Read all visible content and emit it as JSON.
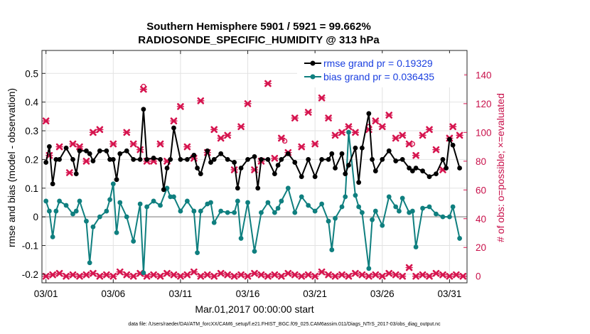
{
  "chart_data": {
    "type": "line",
    "title_line1": "Southern Hemisphere 5901 / 5921 = 99.662%",
    "title_line2": "RADIOSONDE_SPECIFIC_HUMIDITY @ 313 hPa",
    "xlabel": "Mar.01,2017 00:00:00 start",
    "ylabel_left": "rmse and bias (model - observation)",
    "ylabel_right": "# of obs: o=possible; ×=evaluated",
    "footnote": "data file: /Users/raeder/DAI/ATM_forcXX/CAM6_setup/f.e21.FHIST_BGC.f09_025.CAM6assim.011/Diags_NTrS_2017-03/obs_diag_output.nc",
    "x_range": [
      0.7,
      32.3
    ],
    "x_ticks": [
      1,
      6,
      11,
      16,
      21,
      26,
      31
    ],
    "x_tick_labels": [
      "03/01",
      "03/06",
      "03/11",
      "03/16",
      "03/21",
      "03/26",
      "03/31"
    ],
    "y_left_range": [
      -0.23,
      0.58
    ],
    "y_left_ticks": [
      -0.2,
      -0.1,
      0,
      0.1,
      0.2,
      0.3,
      0.4,
      0.5
    ],
    "y_left_tick_labels": [
      "-0.2",
      "-0.1",
      "0",
      "0.1",
      "0.2",
      "0.3",
      "0.4",
      "0.5"
    ],
    "y_right_range": [
      -4.6,
      157
    ],
    "y_right_ticks": [
      0,
      20,
      40,
      60,
      80,
      100,
      120,
      140
    ],
    "y_right_tick_labels": [
      "0",
      "20",
      "40",
      "60",
      "80",
      "100",
      "120",
      "140"
    ],
    "legend": [
      {
        "label": "rmse grand pr = 0.19329",
        "color": "#000000"
      },
      {
        "label": "bias grand pr = 0.036435",
        "color": "#0f7f7f"
      }
    ],
    "colors": {
      "rmse": "#000000",
      "bias": "#0f7f7f",
      "obs": "#d6154f",
      "zero_line": "#b8b8b8"
    },
    "series_rmse": [
      [
        1,
        0.19
      ],
      [
        1.25,
        0.245
      ],
      [
        1.5,
        0.115
      ],
      [
        1.75,
        0.2
      ],
      [
        2,
        0.2
      ],
      [
        2.5,
        0.24
      ],
      [
        3,
        0.2
      ],
      [
        3.25,
        0.15
      ],
      [
        3.5,
        0.23
      ],
      [
        4,
        0.23
      ],
      [
        4.25,
        0.22
      ],
      [
        4.5,
        0.195
      ],
      [
        5,
        0.23
      ],
      [
        5.5,
        0.23
      ],
      [
        5.75,
        0.2
      ],
      [
        6,
        0.2
      ],
      [
        6.25,
        0.13
      ],
      [
        6.5,
        0.22
      ],
      [
        7,
        0.23
      ],
      [
        7.5,
        0.2
      ],
      [
        8,
        0.2
      ],
      [
        8.25,
        0.375
      ],
      [
        8.5,
        0.2
      ],
      [
        9,
        0.205
      ],
      [
        9.5,
        0.2
      ],
      [
        9.75,
        0.095
      ],
      [
        10,
        0.17
      ],
      [
        10.25,
        0.2
      ],
      [
        10.5,
        0.31
      ],
      [
        11,
        0.2
      ],
      [
        11.5,
        0.2
      ],
      [
        12,
        0.215
      ],
      [
        12.25,
        0.17
      ],
      [
        12.5,
        0.15
      ],
      [
        13,
        0.23
      ],
      [
        13.25,
        0.19
      ],
      [
        13.5,
        0.2
      ],
      [
        14,
        0.22
      ],
      [
        14.5,
        0.2
      ],
      [
        15,
        0.19
      ],
      [
        15.25,
        0.1
      ],
      [
        15.5,
        0.17
      ],
      [
        16,
        0.2
      ],
      [
        16.5,
        0.21
      ],
      [
        16.75,
        0.1
      ],
      [
        17,
        0.2
      ],
      [
        17.5,
        0.2
      ],
      [
        18,
        0.15
      ],
      [
        18.25,
        0.18
      ],
      [
        18.5,
        0.2
      ],
      [
        19,
        0.22
      ],
      [
        19.5,
        0.19
      ],
      [
        20,
        0.14
      ],
      [
        20.5,
        0.2
      ],
      [
        21,
        0.14
      ],
      [
        21.5,
        0.2
      ],
      [
        22,
        0.2
      ],
      [
        22.25,
        0.22
      ],
      [
        22.5,
        0.17
      ],
      [
        23,
        0.22
      ],
      [
        23.25,
        0.15
      ],
      [
        23.5,
        0.18
      ],
      [
        24,
        0.24
      ],
      [
        24.25,
        0.12
      ],
      [
        24.5,
        0.24
      ],
      [
        25,
        0.36
      ],
      [
        25.25,
        0.2
      ],
      [
        25.5,
        0.16
      ],
      [
        26,
        0.2
      ],
      [
        26.5,
        0.23
      ],
      [
        27,
        0.195
      ],
      [
        27.5,
        0.2
      ],
      [
        28,
        0.17
      ],
      [
        28.25,
        0.16
      ],
      [
        28.5,
        0.17
      ],
      [
        29,
        0.16
      ],
      [
        29.5,
        0.14
      ],
      [
        30,
        0.15
      ],
      [
        30.5,
        0.2
      ],
      [
        30.75,
        0.17
      ],
      [
        31,
        0.27
      ],
      [
        31.25,
        0.25
      ],
      [
        31.75,
        0.17
      ]
    ],
    "series_bias": [
      [
        1,
        0.055
      ],
      [
        1.25,
        0.02
      ],
      [
        1.5,
        -0.07
      ],
      [
        1.75,
        0.02
      ],
      [
        2,
        0.055
      ],
      [
        2.5,
        0.04
      ],
      [
        3,
        0.01
      ],
      [
        3.25,
        0.02
      ],
      [
        3.5,
        0.055
      ],
      [
        4,
        -0.015
      ],
      [
        4.25,
        -0.16
      ],
      [
        4.5,
        -0.035
      ],
      [
        5,
        0.0
      ],
      [
        5.5,
        0.02
      ],
      [
        5.75,
        0.06
      ],
      [
        6,
        0.115
      ],
      [
        6.25,
        -0.055
      ],
      [
        6.5,
        0.05
      ],
      [
        7,
        0.0
      ],
      [
        7.5,
        -0.085
      ],
      [
        8,
        0.045
      ],
      [
        8.25,
        -0.195
      ],
      [
        8.5,
        0.035
      ],
      [
        9,
        0.055
      ],
      [
        9.5,
        0.04
      ],
      [
        10,
        0.1
      ],
      [
        10.25,
        0.07
      ],
      [
        10.5,
        0.07
      ],
      [
        11,
        0.02
      ],
      [
        11.5,
        0.055
      ],
      [
        12,
        0.02
      ],
      [
        12.25,
        -0.125
      ],
      [
        12.5,
        0.02
      ],
      [
        13,
        0.045
      ],
      [
        13.25,
        0.05
      ],
      [
        13.5,
        -0.02
      ],
      [
        14,
        0.02
      ],
      [
        14.5,
        0.015
      ],
      [
        15,
        0.015
      ],
      [
        15.25,
        0.055
      ],
      [
        15.5,
        -0.075
      ],
      [
        16,
        0.05
      ],
      [
        16.5,
        -0.12
      ],
      [
        17,
        0.015
      ],
      [
        17.5,
        0.05
      ],
      [
        18,
        0.015
      ],
      [
        18.25,
        0.03
      ],
      [
        18.5,
        0.055
      ],
      [
        19,
        0.1
      ],
      [
        19.5,
        0.015
      ],
      [
        20,
        0.07
      ],
      [
        20.5,
        0.04
      ],
      [
        21,
        0.02
      ],
      [
        21.5,
        0.045
      ],
      [
        22,
        -0.015
      ],
      [
        22.25,
        -0.115
      ],
      [
        22.5,
        -0.005
      ],
      [
        23,
        0.035
      ],
      [
        23.25,
        0.07
      ],
      [
        23.5,
        0.295
      ],
      [
        24,
        0.075
      ],
      [
        24.25,
        0.035
      ],
      [
        24.5,
        0.015
      ],
      [
        25,
        -0.18
      ],
      [
        25.25,
        -0.01
      ],
      [
        25.5,
        0.02
      ],
      [
        26,
        -0.03
      ],
      [
        26.5,
        0.07
      ],
      [
        27,
        0.035
      ],
      [
        27.25,
        0.02
      ],
      [
        27.5,
        0.065
      ],
      [
        28,
        0.015
      ],
      [
        28.25,
        0.02
      ],
      [
        28.5,
        -0.105
      ],
      [
        29,
        0.03
      ],
      [
        29.5,
        0.035
      ],
      [
        30,
        0.01
      ],
      [
        30.5,
        0.0
      ],
      [
        31,
        0.0
      ],
      [
        31.25,
        0.035
      ],
      [
        31.75,
        -0.075
      ]
    ],
    "series_obs_possible_outliers": [
      [
        8.25,
        132
      ],
      [
        18.75,
        94
      ],
      [
        25,
        104
      ],
      [
        28.25,
        92
      ]
    ],
    "series_obs_evaluated_high": [
      [
        1,
        108
      ],
      [
        1.25,
        84
      ],
      [
        2,
        90
      ],
      [
        2.75,
        72
      ],
      [
        3,
        92
      ],
      [
        3.5,
        90
      ],
      [
        4,
        80
      ],
      [
        4.5,
        100
      ],
      [
        5,
        102
      ],
      [
        6,
        92
      ],
      [
        7,
        100
      ],
      [
        7.5,
        92
      ],
      [
        8,
        88
      ],
      [
        8.25,
        130
      ],
      [
        8.5,
        80
      ],
      [
        9,
        80
      ],
      [
        9.5,
        92
      ],
      [
        10,
        80
      ],
      [
        10.5,
        108
      ],
      [
        11,
        118
      ],
      [
        11.5,
        90
      ],
      [
        12,
        82
      ],
      [
        12.5,
        122
      ],
      [
        13,
        86
      ],
      [
        13.5,
        102
      ],
      [
        14,
        96
      ],
      [
        14.5,
        98
      ],
      [
        15,
        74
      ],
      [
        15.5,
        104
      ],
      [
        16,
        120
      ],
      [
        16.5,
        74
      ],
      [
        17,
        80
      ],
      [
        17.5,
        134
      ],
      [
        18,
        82
      ],
      [
        18.5,
        96
      ],
      [
        19,
        86
      ],
      [
        19.5,
        110
      ],
      [
        20,
        90
      ],
      [
        20.5,
        114
      ],
      [
        21,
        92
      ],
      [
        21.5,
        124
      ],
      [
        22,
        110
      ],
      [
        22.5,
        98
      ],
      [
        23,
        100
      ],
      [
        23.5,
        104
      ],
      [
        24,
        100
      ],
      [
        24.5,
        136
      ],
      [
        25,
        102
      ],
      [
        25.5,
        108
      ],
      [
        26,
        104
      ],
      [
        26.5,
        112
      ],
      [
        27,
        96
      ],
      [
        27.5,
        98
      ],
      [
        28,
        92
      ],
      [
        28.5,
        84
      ],
      [
        29,
        98
      ],
      [
        29.5,
        102
      ],
      [
        30,
        88
      ],
      [
        30.5,
        74
      ],
      [
        31,
        96
      ],
      [
        31.25,
        104
      ],
      [
        31.75,
        98
      ]
    ],
    "series_obs_evaluated_low": [
      [
        1,
        0
      ],
      [
        1.5,
        1
      ],
      [
        2,
        2
      ],
      [
        2.5,
        0
      ],
      [
        3,
        1
      ],
      [
        3.5,
        0
      ],
      [
        4,
        1
      ],
      [
        4.5,
        2
      ],
      [
        5,
        0
      ],
      [
        5.5,
        1
      ],
      [
        6,
        0
      ],
      [
        6.5,
        3
      ],
      [
        7,
        1
      ],
      [
        7.5,
        0
      ],
      [
        8,
        2
      ],
      [
        8.5,
        0
      ],
      [
        9,
        1
      ],
      [
        9.5,
        0
      ],
      [
        10,
        2
      ],
      [
        10.5,
        1
      ],
      [
        11,
        0
      ],
      [
        11.5,
        1
      ],
      [
        12,
        3
      ],
      [
        12.5,
        0
      ],
      [
        13,
        1
      ],
      [
        13.5,
        0
      ],
      [
        14,
        2
      ],
      [
        14.5,
        1
      ],
      [
        15,
        0
      ],
      [
        15.5,
        1
      ],
      [
        16,
        0
      ],
      [
        16.5,
        2
      ],
      [
        17,
        1
      ],
      [
        17.5,
        0
      ],
      [
        18,
        1
      ],
      [
        18.5,
        0
      ],
      [
        19,
        2
      ],
      [
        19.5,
        1
      ],
      [
        20,
        0
      ],
      [
        20.5,
        1
      ],
      [
        21,
        0
      ],
      [
        21.5,
        3
      ],
      [
        22,
        1
      ],
      [
        22.5,
        0
      ],
      [
        23,
        1
      ],
      [
        23.5,
        0
      ],
      [
        24,
        2
      ],
      [
        24.5,
        1
      ],
      [
        25,
        0
      ],
      [
        25.5,
        1
      ],
      [
        26,
        0
      ],
      [
        26.5,
        2
      ],
      [
        27,
        1
      ],
      [
        27.5,
        0
      ],
      [
        28,
        6
      ],
      [
        28.5,
        0
      ],
      [
        29,
        1
      ],
      [
        29.5,
        0
      ],
      [
        30,
        2
      ],
      [
        30.5,
        1
      ],
      [
        31,
        0
      ],
      [
        31.5,
        1
      ],
      [
        32,
        0
      ]
    ]
  }
}
